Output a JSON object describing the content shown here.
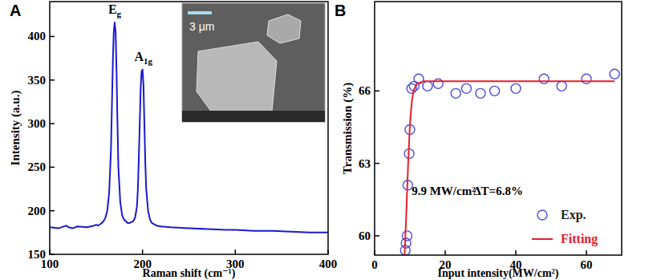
{
  "chart_data": [
    {
      "type": "line",
      "title": "A",
      "x_label": "Raman shift (cm⁻¹)",
      "y_label": "Intensity (a.u.)",
      "x": [
        100,
        110,
        118,
        120,
        125,
        130,
        140,
        148,
        150,
        152,
        155,
        158,
        160,
        162,
        164,
        166,
        167,
        168,
        169,
        170,
        171,
        172,
        173,
        174,
        176,
        178,
        180,
        182,
        184,
        186,
        188,
        190,
        192,
        194,
        195,
        196,
        197,
        198,
        199,
        200,
        201,
        202,
        203,
        204,
        206,
        208,
        210,
        215,
        220,
        230,
        250,
        270,
        290,
        300,
        320,
        340,
        360,
        380,
        400
      ],
      "values": [
        181,
        180,
        183,
        181,
        180,
        182,
        181,
        183,
        184,
        183,
        185,
        188,
        192,
        200,
        220,
        270,
        320,
        370,
        405,
        416,
        405,
        360,
        300,
        250,
        210,
        195,
        190,
        188,
        186,
        186,
        187,
        188,
        192,
        205,
        225,
        260,
        300,
        340,
        360,
        362,
        345,
        300,
        255,
        225,
        200,
        190,
        186,
        183,
        182,
        181,
        180,
        179,
        178,
        178,
        177,
        177,
        176,
        175,
        175
      ],
      "color": "#1a1ad0",
      "xlim": [
        100,
        400
      ],
      "xticks": [
        100,
        200,
        300,
        400
      ],
      "ylim": [
        150,
        440
      ],
      "yticks": [
        150,
        200,
        250,
        300,
        350,
        400
      ],
      "annotations": [
        {
          "text": "Eg",
          "x": 170,
          "y": 426
        },
        {
          "text": "A1g",
          "x": 201,
          "y": 372
        }
      ],
      "inset": {
        "scale_bar": "3 μm"
      }
    },
    {
      "type": "scatter",
      "title": "B",
      "x_label": "Input intensity(MW/cm²)",
      "y_label": "Transmission (%)",
      "xlim": [
        0,
        70
      ],
      "xticks": [
        0,
        20,
        40,
        60
      ],
      "ylim": [
        59.2,
        69.7
      ],
      "yticks": [
        60,
        63,
        66
      ],
      "legend": "lower right",
      "series": [
        {
          "name": "Exp.",
          "type": "scatter",
          "marker": "circle",
          "color": "#4f4fd8",
          "x": [
            8.7,
            8.9,
            9.2,
            9.4,
            9.8,
            10.0,
            10.5,
            11.2,
            12.5,
            15,
            18,
            23,
            26,
            30,
            34,
            40,
            48,
            53,
            60,
            68
          ],
          "values": [
            59.4,
            59.7,
            60.0,
            62.1,
            63.4,
            64.4,
            66.1,
            66.2,
            66.5,
            66.2,
            66.3,
            65.9,
            66.1,
            65.9,
            66.0,
            66.1,
            66.5,
            66.2,
            66.5,
            66.7
          ]
        },
        {
          "name": "Fitting",
          "type": "line",
          "color": "#e8202a",
          "x": [
            8.5,
            9,
            9.5,
            10,
            10.5,
            11,
            12,
            14,
            20,
            68
          ],
          "values": [
            59.2,
            61.0,
            63.0,
            64.6,
            65.5,
            66.0,
            66.3,
            66.4,
            66.4,
            66.4
          ]
        }
      ],
      "annotations": [
        {
          "text": "9.9 MW/cm²",
          "x": 10.5,
          "y": 61.7
        },
        {
          "text": "ΔT=6.8%",
          "x": 28,
          "y": 61.7
        }
      ]
    }
  ]
}
